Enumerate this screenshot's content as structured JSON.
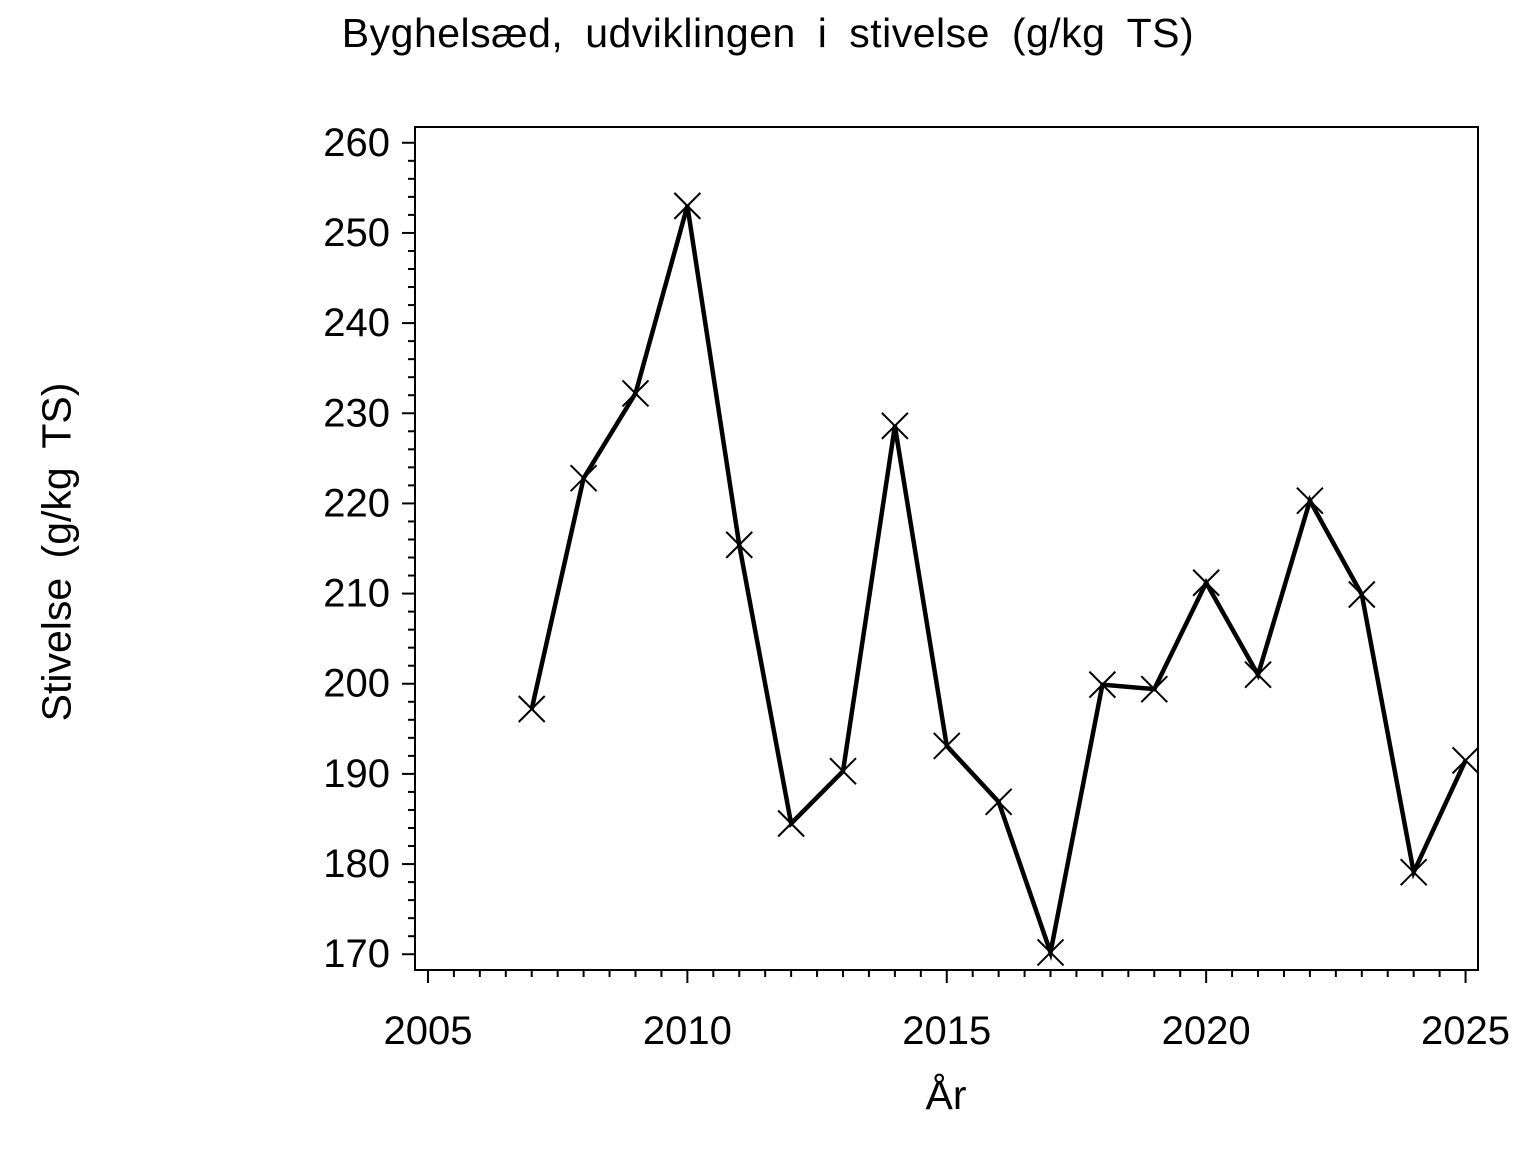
{
  "page": {
    "background": "#ffffff",
    "foreground": "#000000"
  },
  "chart_data": {
    "type": "line",
    "title": "Byghelsæd,  udviklingen  i  stivelse  (g/kg  TS)",
    "xlabel": "År",
    "ylabel": "Stivelse  (g/kg  TS)",
    "series": [
      {
        "name": "stivelse",
        "x": [
          2007,
          2008,
          2009,
          2010,
          2011,
          2012,
          2013,
          2014,
          2015,
          2016,
          2017,
          2018,
          2019,
          2020,
          2021,
          2022,
          2023,
          2024,
          2025
        ],
        "values": [
          197.2,
          222.8,
          232.2,
          253.0,
          215.4,
          184.5,
          190.3,
          228.6,
          193.1,
          186.9,
          170.2,
          199.9,
          199.4,
          211.2,
          201.0,
          220.3,
          209.9,
          179.1,
          191.5
        ],
        "marker": "x",
        "color": "#000000"
      }
    ],
    "xlim": [
      2004.75,
      2025.24
    ],
    "ylim": [
      168.25,
      261.75
    ],
    "x_major_ticks": [
      2005,
      2010,
      2015,
      2020,
      2025
    ],
    "x_tick_labels": [
      "2005",
      "2010",
      "2015",
      "2020",
      "2025"
    ],
    "x_minor_step": 0.5,
    "y_major_ticks": [
      170,
      180,
      190,
      200,
      210,
      220,
      230,
      240,
      250,
      260
    ],
    "y_tick_labels": [
      "170",
      "180",
      "190",
      "200",
      "210",
      "220",
      "230",
      "240",
      "250",
      "260"
    ],
    "y_minor_step": 2,
    "grid": false,
    "legend_position": "none",
    "frame": true
  }
}
